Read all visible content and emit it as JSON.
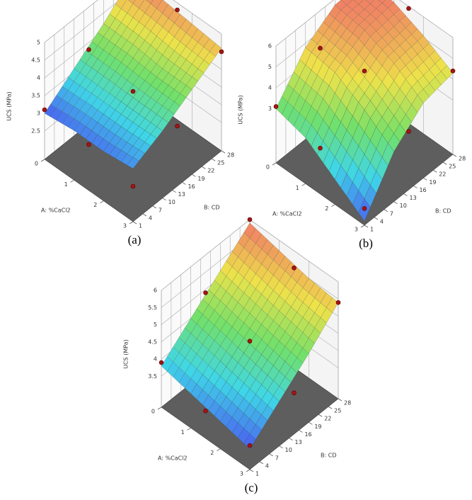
{
  "chart_data": [
    {
      "type": "surface",
      "caption": "(a)",
      "x_label": "A: %CaCl2",
      "y_label": "B: CD",
      "z_label": "UCS (MPa)",
      "xlim": [
        0,
        3
      ],
      "ylim": [
        1,
        28
      ],
      "zlim": [
        1.7,
        5
      ],
      "xticks": [
        0,
        1,
        2,
        3
      ],
      "yticks": [
        1,
        4,
        7,
        10,
        13,
        16,
        19,
        22,
        25,
        28
      ],
      "zticks": [
        2.5,
        3,
        3.5,
        4,
        4.5,
        5
      ],
      "grid": {
        "x": [
          0,
          1,
          2,
          3
        ],
        "y": [
          1,
          10,
          19,
          28
        ],
        "z": [
          [
            3.0,
            3.6,
            4.2,
            4.9
          ],
          [
            3.1,
            3.6,
            4.2,
            4.8
          ],
          [
            3.1,
            3.6,
            4.1,
            4.7
          ],
          [
            3.2,
            3.6,
            4.1,
            4.6
          ]
        ]
      },
      "points": {
        "x": [
          0,
          0,
          0,
          1.5,
          1.5,
          1.5,
          3,
          3,
          3
        ],
        "y": [
          1,
          14.5,
          28,
          1,
          14.5,
          28,
          1,
          14.5,
          28
        ],
        "z": [
          3.1,
          3.8,
          5.0,
          3.0,
          3.5,
          4.8,
          2.7,
          3.4,
          4.5
        ]
      },
      "point_color": "#a31515",
      "colormap": [
        "#4a5cf0",
        "#3fd6e8",
        "#72e06a",
        "#eee24a",
        "#f07a66"
      ]
    },
    {
      "type": "surface",
      "caption": "(b)",
      "x_label": "A: %CaCl2",
      "y_label": "B: CD",
      "z_label": "UCS (MPa)",
      "xlim": [
        0,
        3
      ],
      "ylim": [
        1,
        28
      ],
      "zlim": [
        0.4,
        6
      ],
      "xticks": [
        0,
        1,
        2,
        3
      ],
      "yticks": [
        1,
        4,
        7,
        10,
        13,
        16,
        19,
        22,
        25,
        28
      ],
      "zticks": [
        3,
        4,
        5,
        6
      ],
      "grid": {
        "x": [
          0,
          1,
          2,
          3
        ],
        "y": [
          1,
          10,
          19,
          28
        ],
        "z": [
          [
            3.0,
            4.8,
            5.7,
            5.8
          ],
          [
            2.6,
            4.6,
            5.5,
            5.7
          ],
          [
            1.6,
            3.8,
            4.9,
            5.1
          ],
          [
            0.6,
            2.8,
            4.0,
            4.3
          ]
        ]
      },
      "points": {
        "x": [
          0,
          0,
          0,
          1.5,
          1.5,
          1.5,
          3,
          3,
          3
        ],
        "y": [
          1,
          14.5,
          28,
          1,
          14.5,
          28,
          1,
          14.5,
          28
        ],
        "z": [
          3.1,
          4.2,
          6.0,
          2.6,
          4.6,
          5.9,
          1.2,
          3.2,
          4.4
        ]
      },
      "point_color": "#a31515",
      "colormap": [
        "#4a5cf0",
        "#3fd6e8",
        "#72e06a",
        "#eee24a",
        "#f07a66"
      ]
    },
    {
      "type": "surface",
      "caption": "(c)",
      "x_label": "A: %CaCl2",
      "y_label": "B: CD",
      "z_label": "UCS (MPa)",
      "xlim": [
        0,
        3
      ],
      "ylim": [
        1,
        28
      ],
      "zlim": [
        2.6,
        6
      ],
      "xticks": [
        0,
        1,
        2,
        3
      ],
      "yticks": [
        1,
        4,
        7,
        10,
        13,
        16,
        19,
        22,
        25,
        28
      ],
      "zticks": [
        3.5,
        4,
        4.5,
        5,
        5.5,
        6
      ],
      "grid": {
        "x": [
          0,
          1,
          2,
          3
        ],
        "y": [
          1,
          10,
          19,
          28
        ],
        "z": [
          [
            3.8,
            4.5,
            5.2,
            5.9
          ],
          [
            3.6,
            4.3,
            5.0,
            5.7
          ],
          [
            3.4,
            4.1,
            4.8,
            5.5
          ],
          [
            3.2,
            3.9,
            4.6,
            5.4
          ]
        ]
      },
      "points": {
        "x": [
          0,
          0,
          0,
          1.5,
          1.5,
          1.5,
          3,
          3,
          3
        ],
        "y": [
          1,
          14.5,
          28,
          1,
          14.5,
          28,
          1,
          14.5,
          28
        ],
        "z": [
          3.9,
          4.9,
          6.0,
          3.4,
          4.4,
          5.5,
          3.3,
          3.8,
          5.4
        ]
      },
      "point_color": "#a31515",
      "colormap": [
        "#4a5cf0",
        "#3fd6e8",
        "#72e06a",
        "#eee24a",
        "#f07a66"
      ]
    }
  ]
}
